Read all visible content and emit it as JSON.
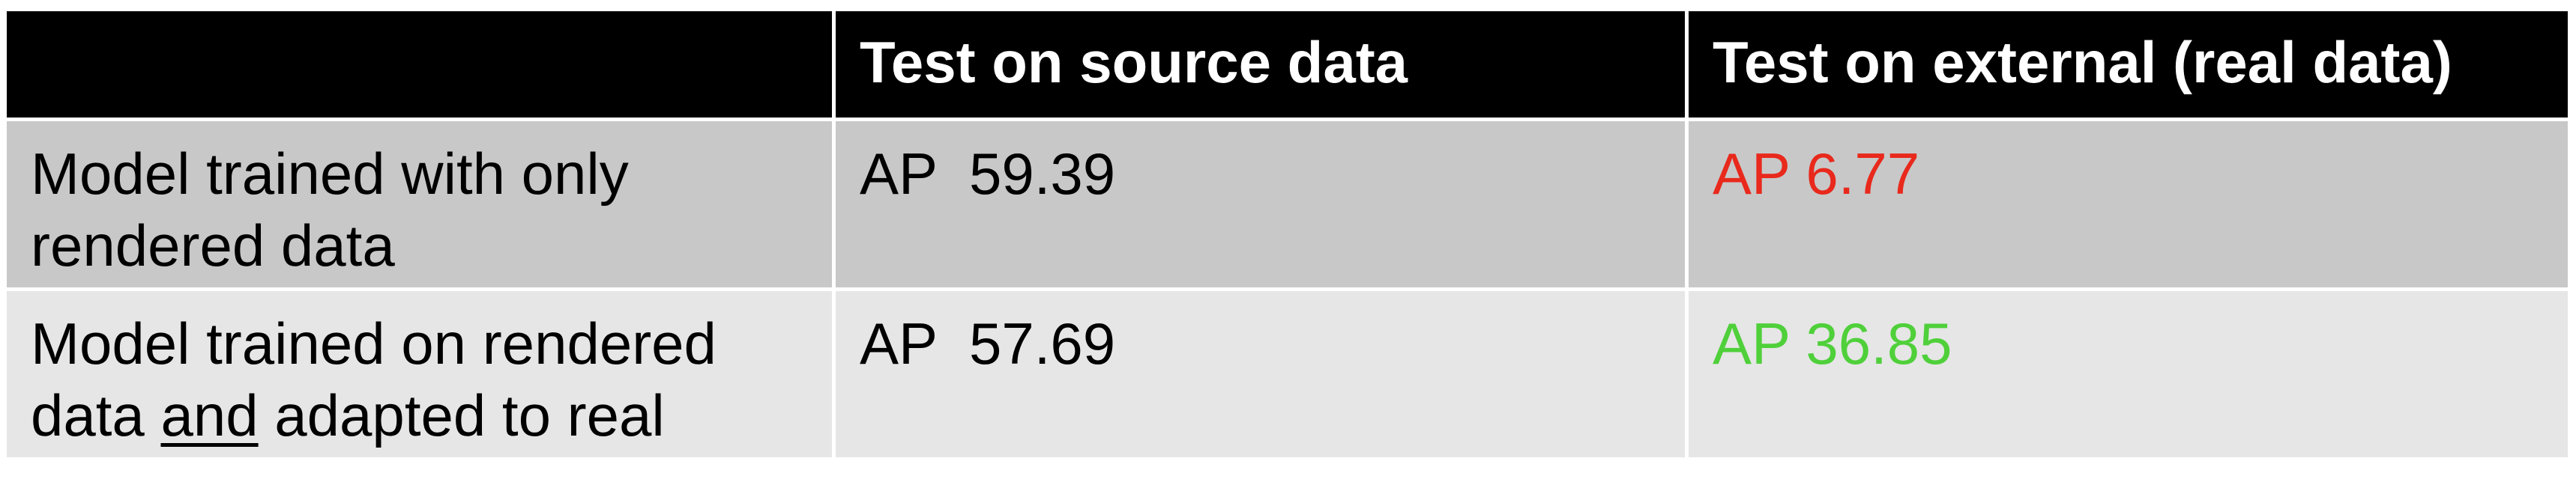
{
  "table": {
    "headers": {
      "corner": "",
      "source": "Test on source data",
      "external": "Test on external (real data)"
    },
    "rows": [
      {
        "label_line1": "Model trained with only",
        "label_line2": "rendered data",
        "source_value": "AP  59.39",
        "external_value": "AP 6.77",
        "external_color": "#e8291c"
      },
      {
        "label_line1": "Model trained on rendered",
        "label_line2_pre": "data ",
        "label_line2_underlined": "and",
        "label_line2_post": " adapted to real",
        "source_value": "AP  57.69",
        "external_value": "AP 36.85",
        "external_color": "#4fd03a"
      }
    ]
  }
}
